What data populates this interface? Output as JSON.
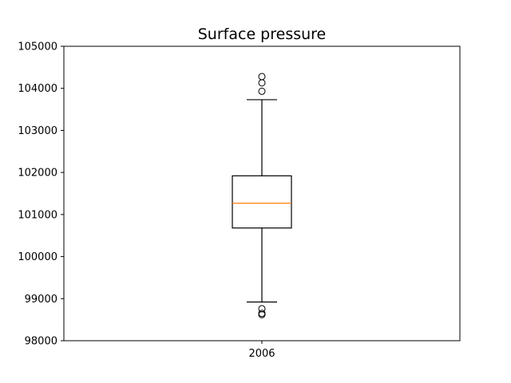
{
  "chart_data": {
    "type": "box",
    "title": "Surface pressure",
    "xlabel": "",
    "ylabel": "",
    "categories": [
      "2006"
    ],
    "ylim": [
      98000,
      105000
    ],
    "yticks": [
      98000,
      99000,
      100000,
      101000,
      102000,
      103000,
      104000,
      105000
    ],
    "ytick_labels": [
      "98000",
      "99000",
      "100000",
      "101000",
      "102000",
      "103000",
      "104000",
      "105000"
    ],
    "boxes": [
      {
        "category": "2006",
        "whisker_low": 98920,
        "q1": 100680,
        "median": 101270,
        "q3": 101920,
        "whisker_high": 103730,
        "outliers": [
          103930,
          104130,
          104280,
          98760,
          98650,
          98620
        ]
      }
    ],
    "grid": false,
    "box_color": "#000000",
    "median_color": "#ff7f0e"
  }
}
